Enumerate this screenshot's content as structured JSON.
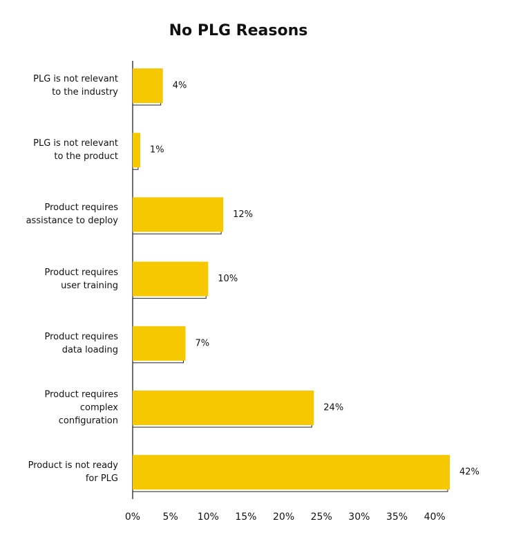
{
  "chart_data": {
    "type": "barh",
    "title": "No PLG Reasons",
    "categories": [
      "PLG is not relevant\nto the industry",
      "PLG is not relevant\nto the product",
      "Product requires\nassistance to deploy",
      "Product requires\nuser training",
      "Product requires\ndata loading",
      "Product requires\ncomplex\nconfiguration",
      "Product is not ready\nfor PLG"
    ],
    "values": [
      4,
      1,
      12,
      10,
      7,
      24,
      42
    ],
    "value_labels": [
      "4%",
      "1%",
      "12%",
      "10%",
      "7%",
      "24%",
      "42%"
    ],
    "color": "#f5c800",
    "xlim": [
      0,
      42
    ],
    "xticks": [
      {
        "value": 0,
        "label": "0%"
      },
      {
        "value": 5,
        "label": "5%"
      },
      {
        "value": 10,
        "label": "10%"
      },
      {
        "value": 15,
        "label": "15%"
      },
      {
        "value": 20,
        "label": "20%"
      },
      {
        "value": 25,
        "label": "25%"
      },
      {
        "value": 30,
        "label": "30%"
      },
      {
        "value": 35,
        "label": "35%"
      },
      {
        "value": 40,
        "label": "40%"
      }
    ]
  }
}
